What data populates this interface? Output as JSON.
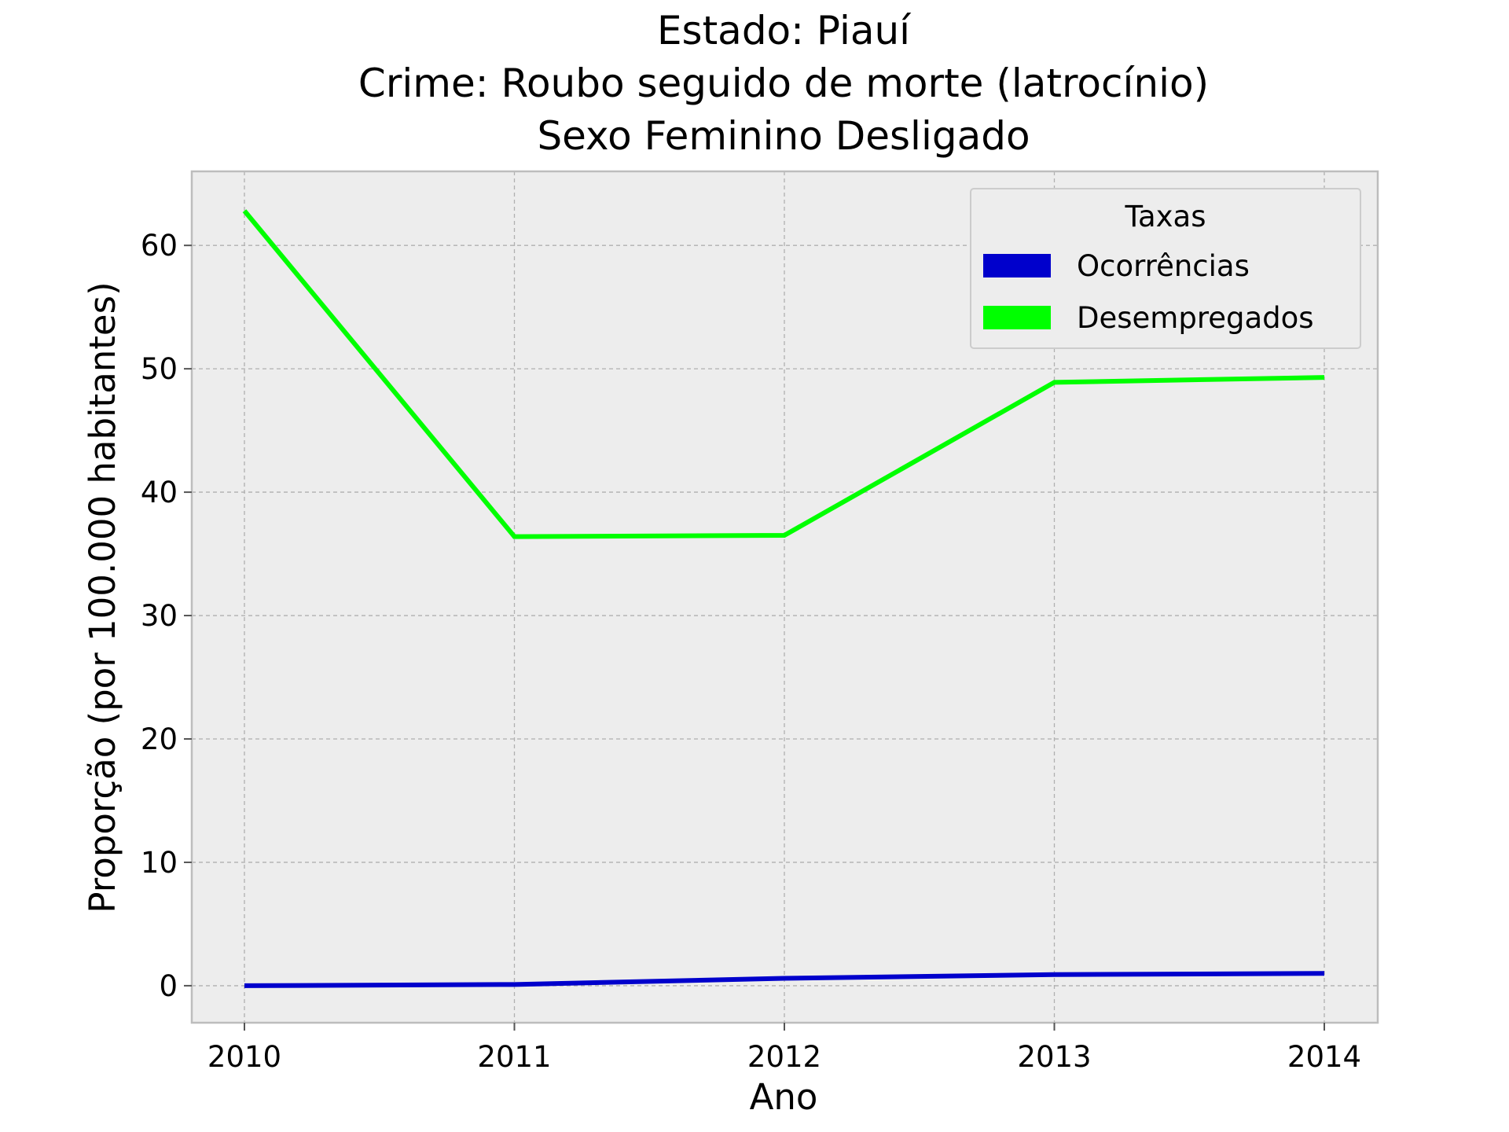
{
  "chart_data": {
    "type": "line",
    "title_lines": [
      "Estado: Piauí",
      "Crime: Roubo seguido de morte (latrocínio)",
      "Sexo  Feminino   Desligado"
    ],
    "xlabel": "Ano",
    "ylabel": "Proporção (por 100.000 habitantes)",
    "x": [
      "2010",
      "2011",
      "2012",
      "2013",
      "2014"
    ],
    "yticks": [
      "0",
      "10",
      "20",
      "30",
      "40",
      "50",
      "60"
    ],
    "ylim": [
      -3,
      66
    ],
    "grid": true,
    "legend": {
      "title": "Taxas",
      "placement": "top-right"
    },
    "series": [
      {
        "name": "Ocorrências",
        "color": "#0000cc",
        "values": [
          0.0,
          0.1,
          0.6,
          0.9,
          1.0
        ]
      },
      {
        "name": "Desempregados",
        "color": "#00ff00",
        "values": [
          62.8,
          36.4,
          36.5,
          48.9,
          49.3
        ]
      }
    ],
    "colors": {
      "plot_background": "#ededed",
      "grid": "#b0b0b0",
      "frame": "#bdbdbd"
    }
  }
}
